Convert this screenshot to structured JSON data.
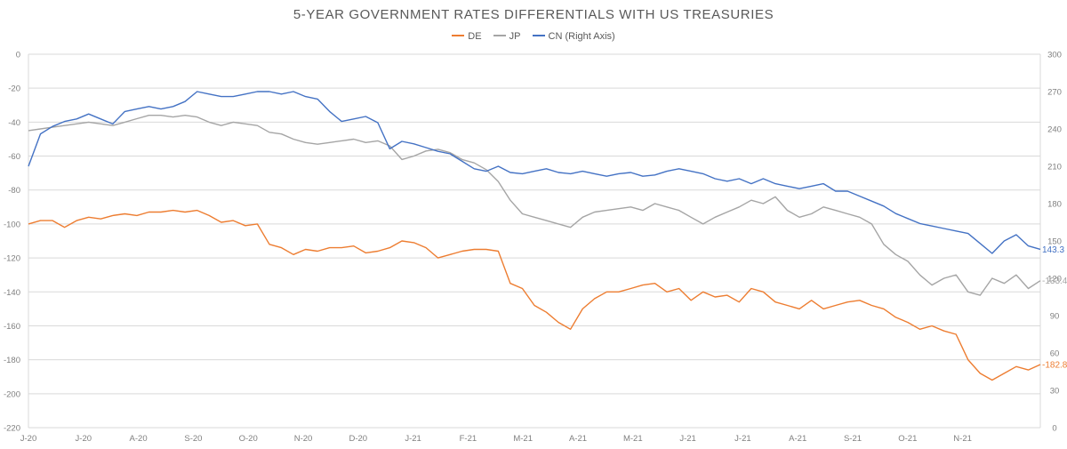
{
  "chart_data": {
    "type": "line",
    "title": "5-YEAR GOVERNMENT RATES DIFFERENTIALS WITH US TREASURIES",
    "xlabel": "",
    "ylabel": "",
    "x_tick_labels": [
      "J-20",
      "J-20",
      "A-20",
      "S-20",
      "O-20",
      "N-20",
      "D-20",
      "J-21",
      "F-21",
      "M-21",
      "A-21",
      "M-21",
      "J-21",
      "J-21",
      "A-21",
      "S-21",
      "O-21",
      "N-21"
    ],
    "left_axis": {
      "ylim": [
        -220,
        0
      ],
      "ticks": [
        0,
        -20,
        -40,
        -60,
        -80,
        -100,
        -120,
        -140,
        -160,
        -180,
        -200,
        -220
      ]
    },
    "right_axis": {
      "ylim": [
        0,
        300
      ],
      "ticks": [
        300,
        270,
        240,
        210,
        180,
        150,
        120,
        90,
        60,
        30,
        0
      ]
    },
    "grid": true,
    "legend_position": "top-center",
    "series": [
      {
        "name": "DE",
        "axis": "left",
        "color": "#ED7D31",
        "end_label": "-182.8",
        "values": [
          -100,
          -98,
          -98,
          -102,
          -98,
          -96,
          -97,
          -95,
          -94,
          -95,
          -93,
          -93,
          -92,
          -93,
          -92,
          -95,
          -99,
          -98,
          -101,
          -100,
          -112,
          -114,
          -118,
          -115,
          -116,
          -114,
          -114,
          -113,
          -117,
          -116,
          -114,
          -110,
          -111,
          -114,
          -120,
          -118,
          -116,
          -115,
          -115,
          -116,
          -135,
          -138,
          -148,
          -152,
          -158,
          -162,
          -150,
          -144,
          -140,
          -140,
          -138,
          -136,
          -135,
          -140,
          -138,
          -145,
          -140,
          -143,
          -142,
          -146,
          -138,
          -140,
          -146,
          -148,
          -150,
          -145,
          -150,
          -148,
          -146,
          -145,
          -148,
          -150,
          -155,
          -158,
          -162,
          -160,
          -163,
          -165,
          -180,
          -188,
          -192,
          -188,
          -184,
          -186,
          -182.8
        ]
      },
      {
        "name": "JP",
        "axis": "left",
        "color": "#A5A5A5",
        "end_label": "-133.4",
        "values": [
          -45,
          -44,
          -43,
          -42,
          -41,
          -40,
          -41,
          -42,
          -40,
          -38,
          -36,
          -36,
          -37,
          -36,
          -37,
          -40,
          -42,
          -40,
          -41,
          -42,
          -46,
          -47,
          -50,
          -52,
          -53,
          -52,
          -51,
          -50,
          -52,
          -51,
          -54,
          -62,
          -60,
          -57,
          -56,
          -58,
          -62,
          -64,
          -68,
          -75,
          -86,
          -94,
          -96,
          -98,
          -100,
          -102,
          -96,
          -93,
          -92,
          -91,
          -90,
          -92,
          -88,
          -90,
          -92,
          -96,
          -100,
          -96,
          -93,
          -90,
          -86,
          -88,
          -84,
          -92,
          -96,
          -94,
          -90,
          -92,
          -94,
          -96,
          -100,
          -112,
          -118,
          -122,
          -130,
          -136,
          -132,
          -130,
          -140,
          -142,
          -132,
          -135,
          -130,
          -138,
          -133.4
        ]
      },
      {
        "name": "CN (Right Axis)",
        "axis": "right",
        "color": "#4472C4",
        "end_label": "143.3",
        "values": [
          210,
          236,
          242,
          246,
          248,
          252,
          248,
          244,
          254,
          256,
          258,
          256,
          258,
          262,
          270,
          268,
          266,
          266,
          268,
          270,
          270,
          268,
          270,
          266,
          264,
          254,
          246,
          248,
          250,
          245,
          224,
          230,
          228,
          225,
          222,
          220,
          214,
          208,
          206,
          210,
          205,
          204,
          206,
          208,
          205,
          204,
          206,
          204,
          202,
          204,
          205,
          202,
          203,
          206,
          208,
          206,
          204,
          200,
          198,
          200,
          196,
          200,
          196,
          194,
          192,
          194,
          196,
          190,
          190,
          186,
          182,
          178,
          172,
          168,
          164,
          162,
          160,
          158,
          156,
          148,
          140,
          150,
          155,
          146,
          143.3
        ]
      }
    ]
  }
}
